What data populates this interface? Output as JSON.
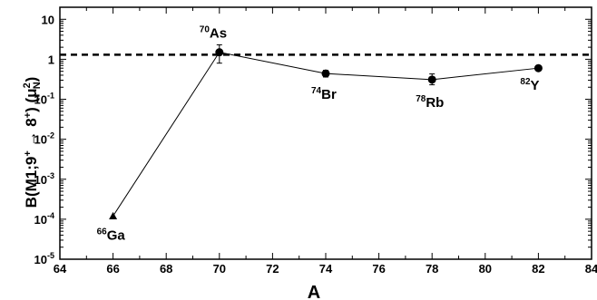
{
  "chart_data": {
    "type": "scatter",
    "xlabel": "A",
    "ylabel": "B(M1;9⁺ → 8⁺) (μ²N)",
    "xlim": [
      64,
      84
    ],
    "ylim": [
      1e-05,
      20
    ],
    "yscale": "log",
    "grid": false,
    "x_ticks": [
      64,
      66,
      68,
      70,
      72,
      74,
      76,
      78,
      80,
      82,
      84
    ],
    "y_ticks": [
      {
        "value": 10,
        "base": "10",
        "exp": ""
      },
      {
        "value": 1,
        "base": "1",
        "exp": ""
      },
      {
        "value": 0.1,
        "base": "10",
        "exp": "-1"
      },
      {
        "value": 0.01,
        "base": "10",
        "exp": "-2"
      },
      {
        "value": 0.001,
        "base": "10",
        "exp": "-3"
      },
      {
        "value": 0.0001,
        "base": "10",
        "exp": "-4"
      },
      {
        "value": 1e-05,
        "base": "10",
        "exp": "-5"
      }
    ],
    "reference_line": {
      "y": 1.3,
      "style": "dashed"
    },
    "series": [
      {
        "points": [
          {
            "x": 66,
            "y": 0.00012,
            "marker": "triangle",
            "label_mass": "66",
            "label_elem": "Ga"
          },
          {
            "x": 70,
            "y": 1.5,
            "err_low": 0.8,
            "err_high": 2.3,
            "marker": "circle",
            "label_mass": "70",
            "label_elem": "As"
          },
          {
            "x": 74,
            "y": 0.44,
            "err_low": 0.36,
            "err_high": 0.53,
            "marker": "circle",
            "label_mass": "74",
            "label_elem": "Br"
          },
          {
            "x": 78,
            "y": 0.31,
            "err_low": 0.23,
            "err_high": 0.43,
            "marker": "circle",
            "label_mass": "78",
            "label_elem": "Rb"
          },
          {
            "x": 82,
            "y": 0.6,
            "marker": "circle",
            "label_mass": "82",
            "label_elem": "Y"
          }
        ]
      }
    ]
  },
  "style": {
    "line_color": "#000000",
    "marker_color": "#000000"
  }
}
